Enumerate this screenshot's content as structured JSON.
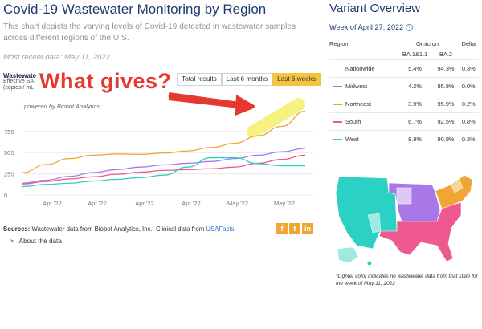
{
  "header": {
    "title": "Covid-19 Wastewater Monitoring by Region",
    "description": "This chart depicts the varying levels of Covid-19 detected in wastewater samples across different regions of the U.S.",
    "recent": "Most recent data: May 11, 2022"
  },
  "chart_header": {
    "label": "Wastewater",
    "sub1": "Effective SA",
    "sub2": "(copies / mL"
  },
  "tabs": [
    "Total results",
    "Last 6 months",
    "Last 6 weeks"
  ],
  "active_tab": "Last 6 weeks",
  "powered": "powered by Biobot Analytics",
  "annotation": {
    "text": "What gives?",
    "arrow_color": "#e5382e",
    "highlight_color": "#f6ef6a"
  },
  "chart_data": {
    "type": "line",
    "y_ticks": [
      "750",
      "500",
      "250",
      "0"
    ],
    "x_ticks": [
      "Apr '22",
      "Apr '22",
      "Apr '22",
      "Apr '22",
      "May '22",
      "May '22"
    ],
    "ylim": [
      0,
      900
    ],
    "x": [
      0,
      1,
      2,
      3,
      4,
      5,
      6,
      7,
      8,
      9,
      10,
      11,
      12
    ],
    "series": [
      {
        "color": "#f0a634",
        "values": [
          265,
          360,
          430,
          470,
          485,
          480,
          495,
          520,
          560,
          610,
          700,
          810,
          990
        ]
      },
      {
        "color": "#a978e8",
        "values": [
          140,
          175,
          220,
          265,
          300,
          330,
          355,
          375,
          395,
          430,
          470,
          510,
          550
        ]
      },
      {
        "color": "#ee5a90",
        "values": [
          130,
          160,
          190,
          215,
          245,
          270,
          290,
          300,
          310,
          330,
          375,
          420,
          470
        ]
      },
      {
        "color": "#2ad1c4",
        "values": [
          100,
          125,
          140,
          165,
          185,
          205,
          235,
          330,
          440,
          440,
          370,
          345,
          345
        ]
      }
    ],
    "grid": true
  },
  "sources": {
    "prefix": "Sources:",
    "text": " Wastewater data from Biobot Analytics, Inc.; Clinical data from ",
    "link": "USAFacts"
  },
  "social": [
    "f",
    "t",
    "in"
  ],
  "about": "About the data",
  "variant": {
    "title": "Variant Overview",
    "week": "Week of April 27, 2022",
    "columns": {
      "region": "Region",
      "omicron": "Omicron",
      "sub1": "BA.1&1.1",
      "sub2": "BA.2",
      "delta": "Delta"
    },
    "rows": [
      {
        "region": "Nationwide",
        "ba1": "5.4%",
        "ba2": "94.3%",
        "delta": "0.3%",
        "color": ""
      },
      {
        "region": "Midwest",
        "ba1": "4.2%",
        "ba2": "95.8%",
        "delta": "0.0%",
        "color": "#a978e8"
      },
      {
        "region": "Northeast",
        "ba1": "3.9%",
        "ba2": "95.9%",
        "delta": "0.2%",
        "color": "#f0a634"
      },
      {
        "region": "South",
        "ba1": "6.7%",
        "ba2": "92.5%",
        "delta": "0.8%",
        "color": "#ee5a90"
      },
      {
        "region": "West",
        "ba1": "8.8%",
        "ba2": "90.9%",
        "delta": "0.3%",
        "color": "#2ad1c4"
      }
    ],
    "note": "*Lighter color indicates no wastewater data from that state for the week of May 11, 2022"
  }
}
